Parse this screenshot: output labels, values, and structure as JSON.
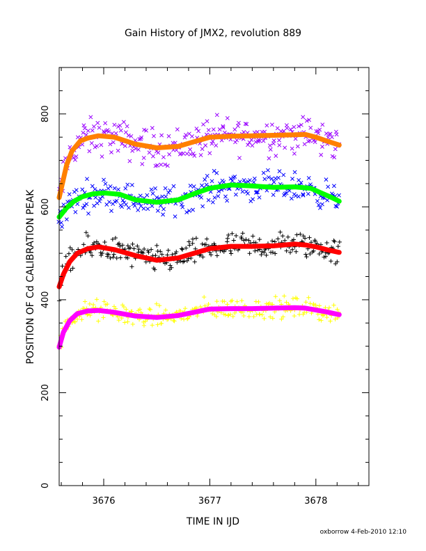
{
  "chart_data": {
    "type": "scatter",
    "title": "Gain History of JMX2, revolution 889",
    "xlabel": "TIME IN IJD",
    "ylabel": "POSITION OF Cd CALIBRATION PEAK",
    "xlim": [
      3675.58,
      3678.5
    ],
    "ylim": [
      0,
      900
    ],
    "x_ticks": [
      3676,
      3677,
      3678
    ],
    "x_tick_labels": [
      "3676",
      "3677",
      "3678"
    ],
    "y_ticks": [
      0,
      200,
      400,
      600,
      800
    ],
    "y_tick_labels": [
      "0",
      "200",
      "400",
      "600",
      "800"
    ],
    "grid": false,
    "legend": "none",
    "series": [
      {
        "marker": "x",
        "color": "#9900ff",
        "fit_color": "#ff8000",
        "scatter": 28,
        "fit": {
          "x": [
            3675.58,
            3675.65,
            3675.7,
            3675.78,
            3675.85,
            3675.95,
            3676.1,
            3676.3,
            3676.5,
            3676.7,
            3676.85,
            3677.0,
            3677.2,
            3677.4,
            3677.6,
            3677.8,
            3677.9,
            3678.0,
            3678.1,
            3678.22
          ],
          "y": [
            620,
            690,
            720,
            742,
            748,
            753,
            750,
            735,
            727,
            730,
            740,
            750,
            752,
            753,
            754,
            755,
            756,
            750,
            742,
            733
          ]
        }
      },
      {
        "marker": "x",
        "color": "#0000ff",
        "fit_color": "#00ff00",
        "scatter": 22,
        "fit": {
          "x": [
            3675.58,
            3675.65,
            3675.72,
            3675.8,
            3675.9,
            3676.0,
            3676.15,
            3676.3,
            3676.5,
            3676.7,
            3676.85,
            3677.0,
            3677.2,
            3677.4,
            3677.6,
            3677.8,
            3677.95,
            3678.05,
            3678.15,
            3678.22
          ],
          "y": [
            578,
            598,
            612,
            622,
            628,
            630,
            627,
            615,
            610,
            615,
            628,
            640,
            647,
            645,
            642,
            643,
            640,
            630,
            620,
            612
          ]
        }
      },
      {
        "marker": "+",
        "color": "#000000",
        "fit_color": "#ff0000",
        "scatter": 20,
        "fit": {
          "x": [
            3675.58,
            3675.62,
            3675.68,
            3675.75,
            3675.85,
            3675.95,
            3676.1,
            3676.3,
            3676.5,
            3676.7,
            3676.85,
            3677.0,
            3677.2,
            3677.4,
            3677.6,
            3677.8,
            3677.9,
            3678.0,
            3678.1,
            3678.22
          ],
          "y": [
            428,
            455,
            482,
            500,
            510,
            514,
            508,
            495,
            485,
            490,
            500,
            510,
            515,
            515,
            516,
            520,
            518,
            514,
            508,
            502
          ]
        }
      },
      {
        "marker": "+",
        "color": "#ffff00",
        "fit_color": "#ff00ff",
        "scatter": 16,
        "fit": {
          "x": [
            3675.58,
            3675.62,
            3675.68,
            3675.75,
            3675.85,
            3675.95,
            3676.1,
            3676.3,
            3676.5,
            3676.7,
            3676.85,
            3677.0,
            3677.2,
            3677.4,
            3677.6,
            3677.8,
            3677.9,
            3678.0,
            3678.1,
            3678.22
          ],
          "y": [
            298,
            330,
            355,
            370,
            376,
            377,
            373,
            365,
            362,
            366,
            373,
            380,
            381,
            381,
            382,
            383,
            382,
            378,
            374,
            368
          ]
        }
      }
    ]
  },
  "footer": "oxborrow  4-Feb-2010 12:10"
}
